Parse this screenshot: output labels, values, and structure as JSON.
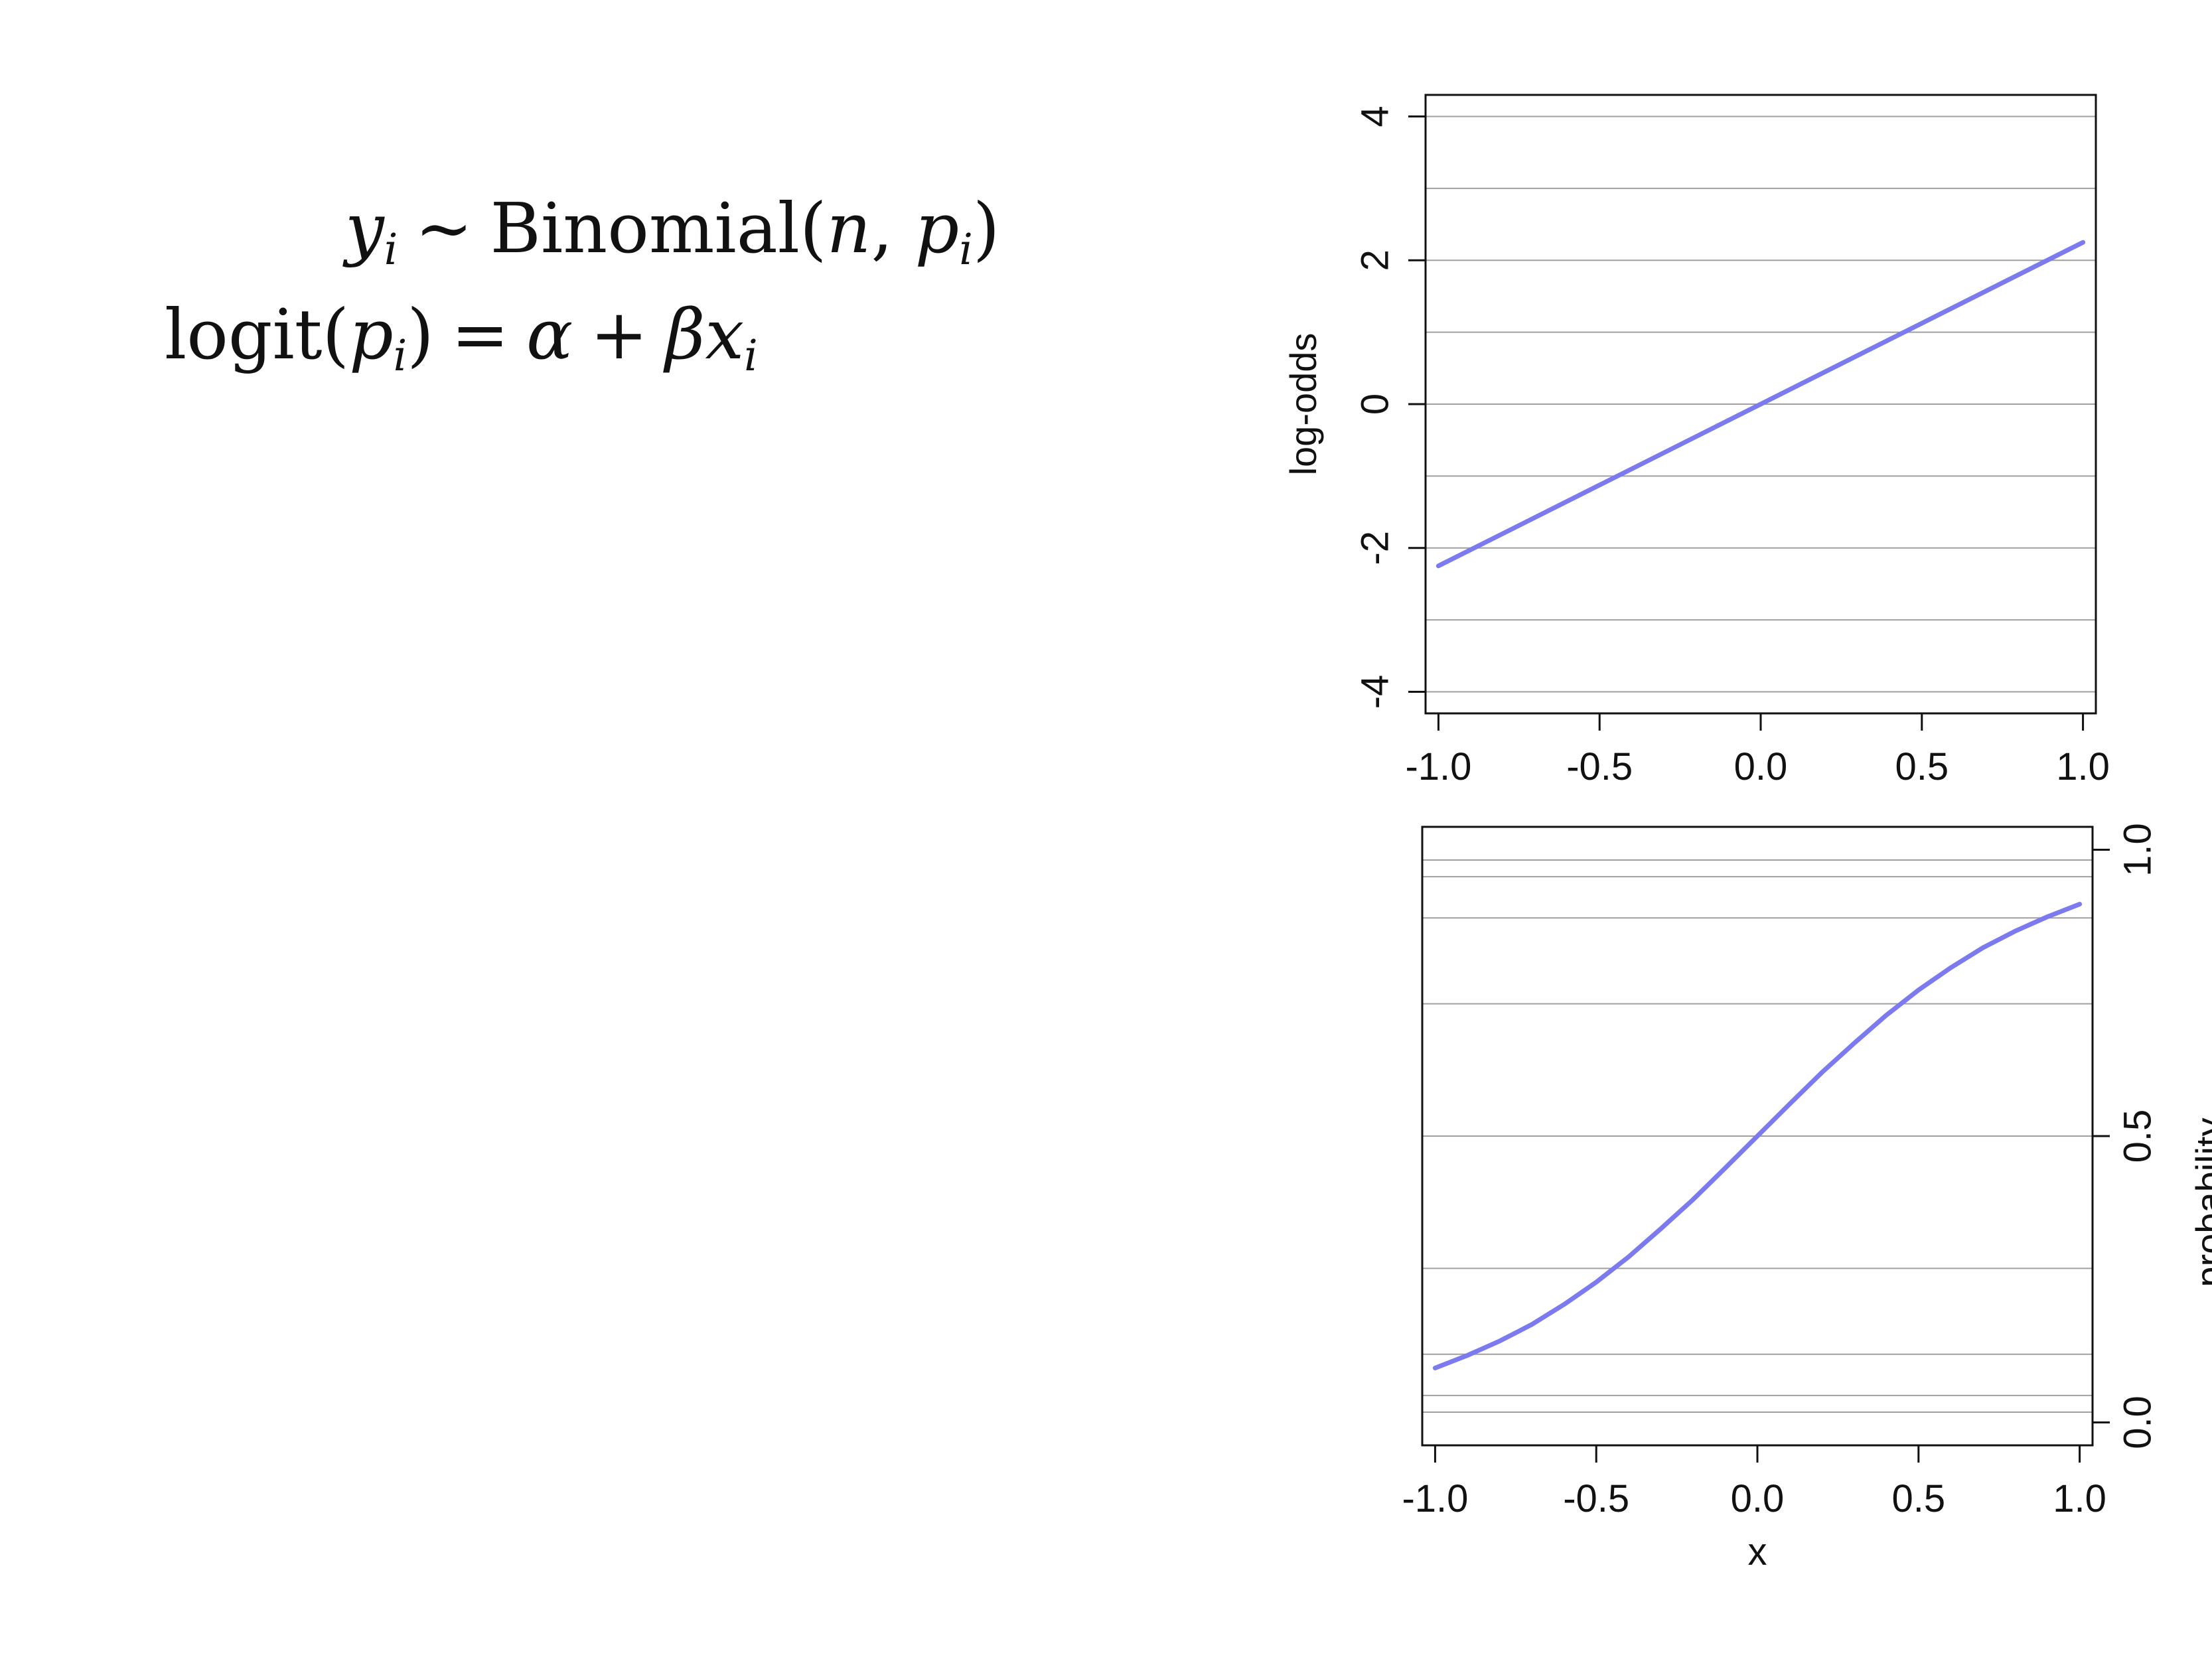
{
  "equations": {
    "line1": {
      "lhs_var": "y",
      "lhs_sub": "i",
      "relation": "~",
      "fn": "Binomial(",
      "arg1": "n",
      "sep": ", ",
      "arg2": "p",
      "arg2_sub": "i",
      "close": ")"
    },
    "line2": {
      "fn": "logit(",
      "arg": "p",
      "arg_sub": "i",
      "close": ")",
      "eq": "=",
      "alpha": "α",
      "plus": "+",
      "beta": "β",
      "x": "x",
      "x_sub": "i"
    }
  },
  "colors": {
    "curve": "#7b7bef",
    "grid": "#a0a0a0",
    "axis": "#111111"
  },
  "chart_data": [
    {
      "type": "line",
      "title": "",
      "xlabel": "",
      "ylabel": "log-odds",
      "xlim": [
        -1.04,
        1.04
      ],
      "ylim": [
        -4.3,
        4.3
      ],
      "xticks": [
        -1.0,
        -0.5,
        0.0,
        0.5,
        1.0
      ],
      "xtick_labels": [
        "-1.0",
        "-0.5",
        "0.0",
        "0.5",
        "1.0"
      ],
      "yticks": [
        -4,
        -2,
        0,
        2,
        4
      ],
      "ytick_labels": [
        "-4",
        "-2",
        "0",
        "2",
        "4"
      ],
      "gridlines_y": [
        -4,
        -3,
        -2,
        -1,
        0,
        1,
        2,
        3,
        4
      ],
      "grid": true,
      "series": [
        {
          "x": [
            -1.0,
            -0.5,
            0.0,
            0.5,
            1.0
          ],
          "y": [
            -2.25,
            -1.125,
            0.0,
            1.125,
            2.25
          ]
        }
      ]
    },
    {
      "type": "line",
      "title": "",
      "xlabel": "x",
      "ylabel": "probability",
      "xlim": [
        -1.04,
        1.04
      ],
      "ylim": [
        -0.04,
        1.04
      ],
      "xticks": [
        -1.0,
        -0.5,
        0.0,
        0.5,
        1.0
      ],
      "xtick_labels": [
        "-1.0",
        "-0.5",
        "0.0",
        "0.5",
        "1.0"
      ],
      "yticks": [
        0.0,
        0.5,
        1.0
      ],
      "ytick_labels": [
        "0.0",
        "0.5",
        "1.0"
      ],
      "gridlines_y": [
        0.018,
        0.047,
        0.119,
        0.269,
        0.5,
        0.731,
        0.881,
        0.953,
        0.982
      ],
      "grid": true,
      "series": [
        {
          "x": [
            -1.0,
            -0.9,
            -0.8,
            -0.7,
            -0.6,
            -0.5,
            -0.4,
            -0.3,
            -0.2,
            -0.1,
            0.0,
            0.1,
            0.2,
            0.3,
            0.4,
            0.5,
            0.6,
            0.7,
            0.8,
            0.9,
            1.0
          ],
          "y": [
            0.095,
            0.117,
            0.142,
            0.171,
            0.206,
            0.245,
            0.289,
            0.338,
            0.389,
            0.444,
            0.5,
            0.556,
            0.611,
            0.662,
            0.711,
            0.755,
            0.794,
            0.829,
            0.858,
            0.883,
            0.905
          ]
        }
      ]
    }
  ]
}
